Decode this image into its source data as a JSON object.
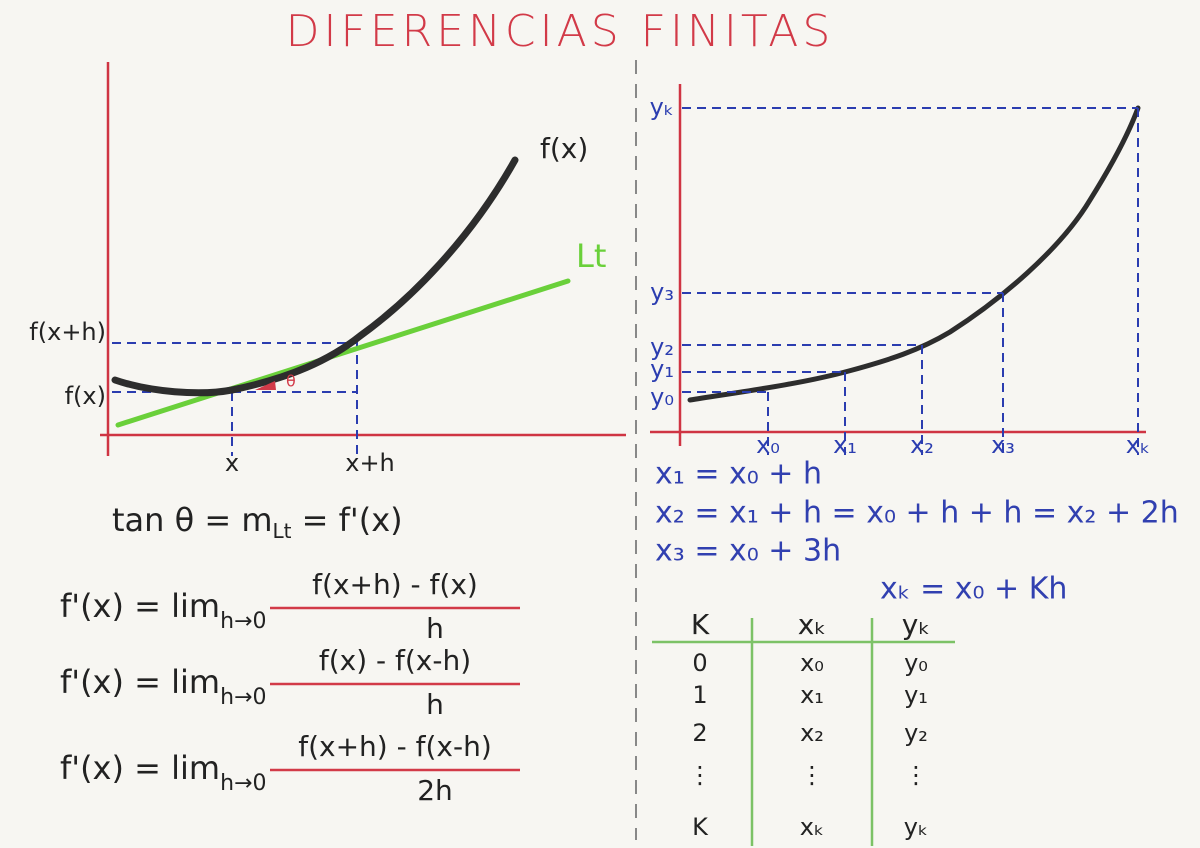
{
  "title": "DIFERENCIAS FINITAS",
  "left_graph": {
    "curve_label": "f(x)",
    "tangent_label": "Lt",
    "angle_label": "θ",
    "y_labels": [
      "f(x+h)",
      "f(x)"
    ],
    "x_labels": [
      "x",
      "x+h"
    ]
  },
  "derivative": {
    "before": "tan θ = m",
    "sub": "Lt",
    "after": " = f'(x)"
  },
  "formulas": [
    {
      "lhs": "f'(x) = lim",
      "sub": "h→0",
      "numerator": "f(x+h) - f(x)",
      "denominator": "h"
    },
    {
      "lhs": "f'(x) = lim",
      "sub": "h→0",
      "numerator": "f(x) - f(x-h)",
      "denominator": "h"
    },
    {
      "lhs": "f'(x) = lim",
      "sub": "h→0",
      "numerator": "f(x+h) - f(x-h)",
      "denominator": "2h"
    }
  ],
  "right_graph": {
    "y_labels": [
      "yₖ",
      "y₃",
      "y₂",
      "y₁",
      "y₀"
    ],
    "x_labels": [
      "x₀",
      "x₁",
      "x₂",
      "x₃",
      "xₖ"
    ]
  },
  "equations": [
    "x₁ = x₀ + h",
    "x₂ = x₁ + h = x₀ + h + h = x₂ + 2h",
    "x₃ = x₀ + 3h",
    "xₖ = x₀ + Kh"
  ],
  "table": {
    "header": [
      "K",
      "xₖ",
      "yₖ"
    ],
    "rows": [
      [
        "0",
        "x₀",
        "y₀"
      ],
      [
        "1",
        "x₁",
        "y₁"
      ],
      [
        "2",
        "x₂",
        "y₂"
      ],
      [
        "⋮",
        "⋮",
        "⋮"
      ],
      [
        "K",
        "xₖ",
        "yₖ"
      ]
    ]
  }
}
